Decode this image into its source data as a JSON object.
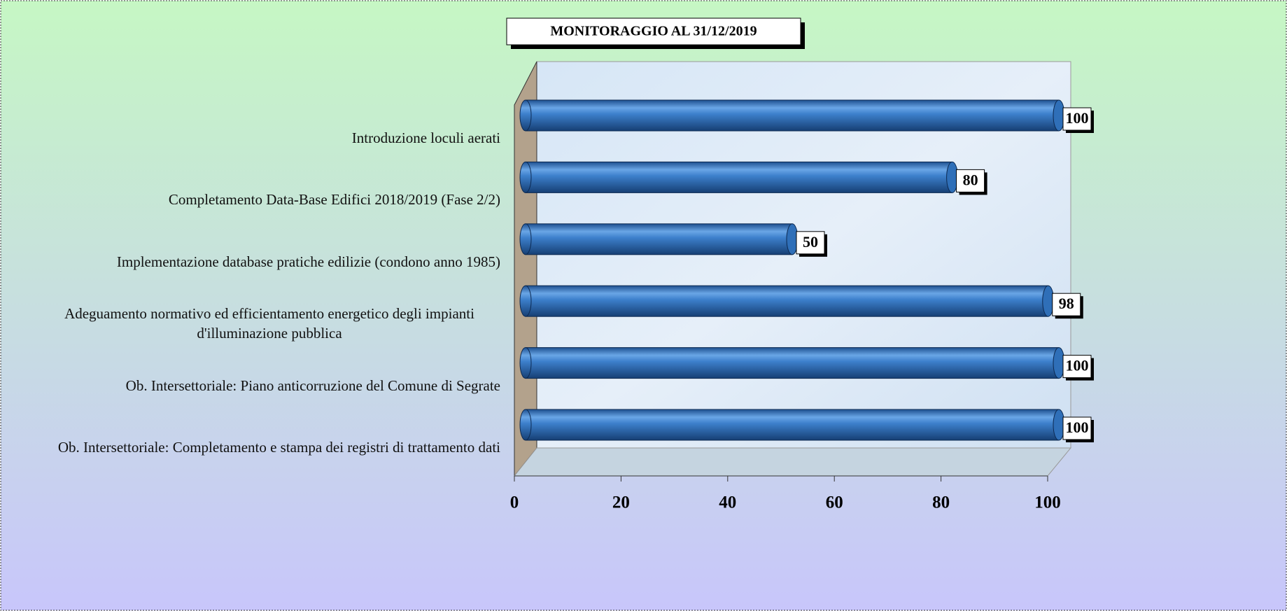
{
  "chart_data": {
    "type": "bar",
    "orientation": "horizontal",
    "title": "MONITORAGGIO  AL 31/12/2019",
    "categories": [
      "Introduzione loculi aerati",
      "Completamento Data-Base Edifici 2018/2019  (Fase 2/2)",
      "Implementazione database pratiche edilizie (condono anno 1985)",
      "Adeguamento normativo ed efficientamento energetico degli impianti d'illuminazione pubblica",
      "Ob. Intersettoriale: Piano anticorruzione del Comune di Segrate",
      "Ob. Intersettoriale: Completamento e stampa dei registri di trattamento dati"
    ],
    "values": [
      100,
      80,
      50,
      98,
      100,
      100
    ],
    "color": "#2f6fb8",
    "xlim": [
      0,
      100
    ],
    "xticks": [
      0,
      20,
      40,
      60,
      80,
      100
    ]
  }
}
